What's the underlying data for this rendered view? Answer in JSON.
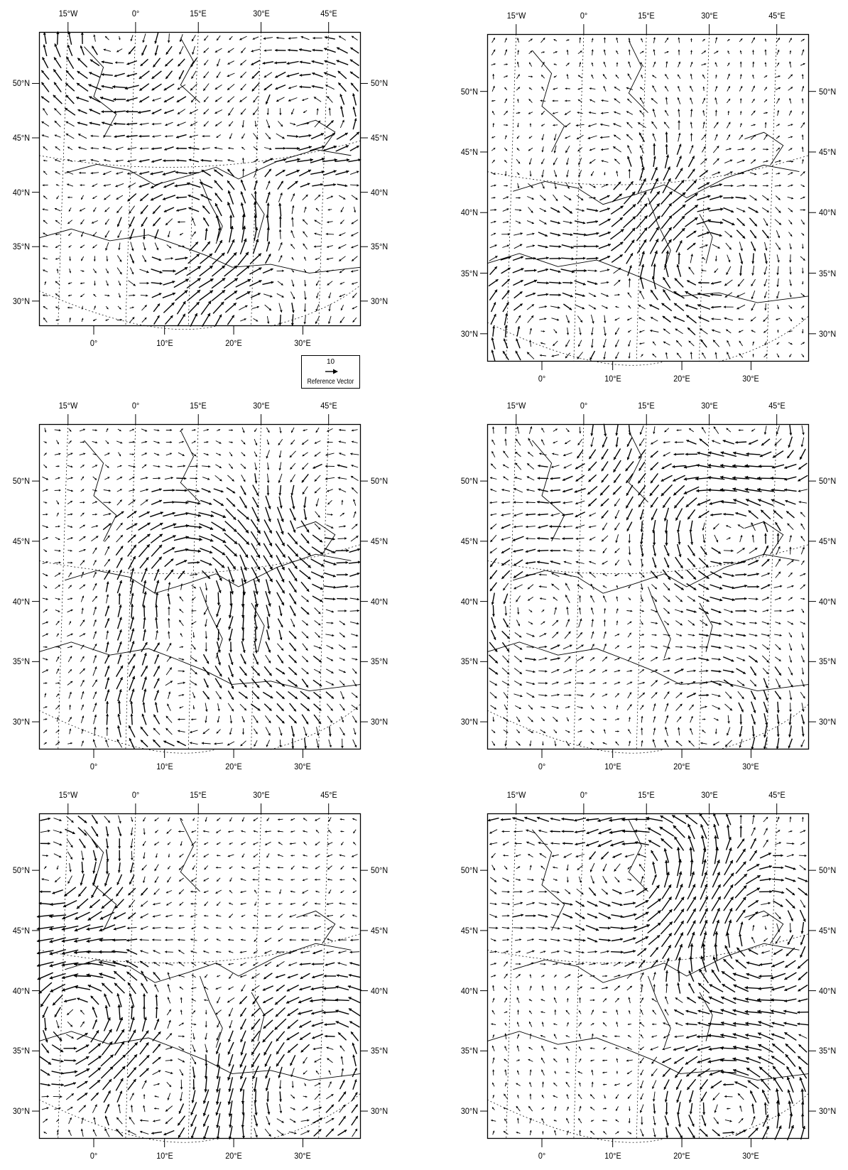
{
  "figure": {
    "layout": "3 rows x 2 columns of wind vector maps",
    "colors": {
      "ink": "#000000",
      "background": "#ffffff"
    },
    "region": {
      "lon_range": [
        -20,
        50
      ],
      "lat_range": [
        28,
        55
      ]
    }
  },
  "axes": {
    "top_labels": [
      "15°W",
      "0°",
      "15°E",
      "30°E",
      "45°E"
    ],
    "bottom_labels": [
      "0°",
      "10°E",
      "20°E",
      "30°E"
    ],
    "side_labels": [
      "50°N",
      "45°N",
      "40°N",
      "35°N",
      "30°N"
    ]
  },
  "reference_vector": {
    "magnitude": "10",
    "label": "Reference Vector"
  },
  "panels": [
    {
      "id": "top-left"
    },
    {
      "id": "top-right"
    },
    {
      "id": "middle-left"
    },
    {
      "id": "middle-right"
    },
    {
      "id": "bottom-left"
    },
    {
      "id": "bottom-right"
    }
  ]
}
